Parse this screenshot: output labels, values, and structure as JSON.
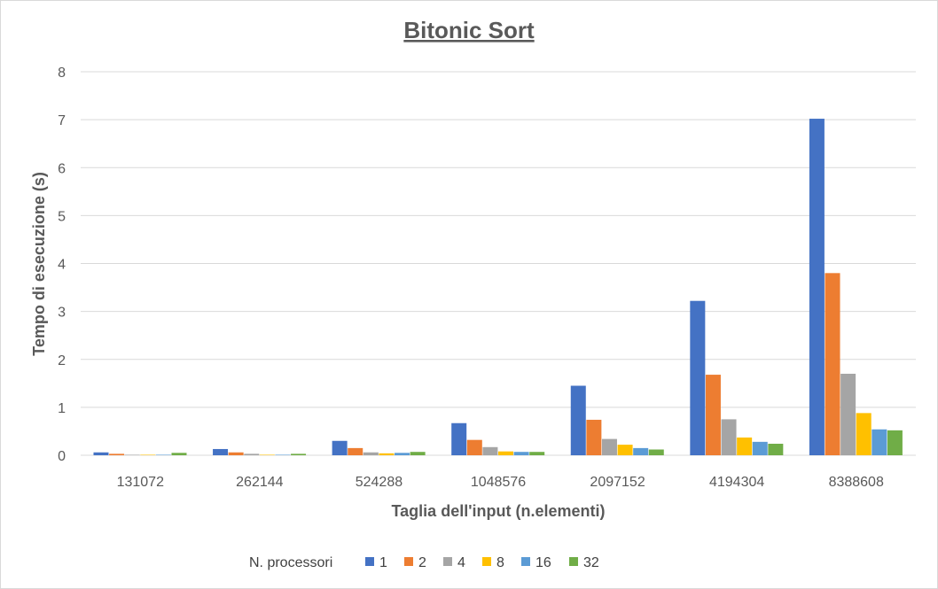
{
  "chart_data": {
    "type": "bar",
    "title": "Bitonic Sort",
    "xlabel": "Taglia dell'input (n.elementi)",
    "ylabel": "Tempo di esecuzione (s)",
    "ylim": [
      0,
      8
    ],
    "yticks": [
      "0",
      "1",
      "2",
      "3",
      "4",
      "5",
      "6",
      "7",
      "8"
    ],
    "grid": true,
    "legend_position": "bottom",
    "legend_title": "N. processori",
    "categories": [
      "131072",
      "262144",
      "524288",
      "1048576",
      "2097152",
      "4194304",
      "8388608"
    ],
    "series": [
      {
        "name": "1",
        "color": "#4472C4",
        "values": [
          0.06,
          0.13,
          0.3,
          0.67,
          1.45,
          3.22,
          7.02
        ]
      },
      {
        "name": "2",
        "color": "#ED7D31",
        "values": [
          0.03,
          0.06,
          0.15,
          0.32,
          0.74,
          1.68,
          3.8
        ]
      },
      {
        "name": "4",
        "color": "#A5A5A5",
        "values": [
          0.01,
          0.03,
          0.06,
          0.17,
          0.34,
          0.75,
          1.7
        ]
      },
      {
        "name": "8",
        "color": "#FFC000",
        "values": [
          0.01,
          0.01,
          0.04,
          0.08,
          0.22,
          0.37,
          0.88
        ]
      },
      {
        "name": "16",
        "color": "#5B9BD5",
        "values": [
          0.01,
          0.01,
          0.05,
          0.07,
          0.15,
          0.28,
          0.54
        ]
      },
      {
        "name": "32",
        "color": "#70AD47",
        "values": [
          0.05,
          0.03,
          0.07,
          0.07,
          0.12,
          0.24,
          0.52
        ]
      }
    ]
  }
}
